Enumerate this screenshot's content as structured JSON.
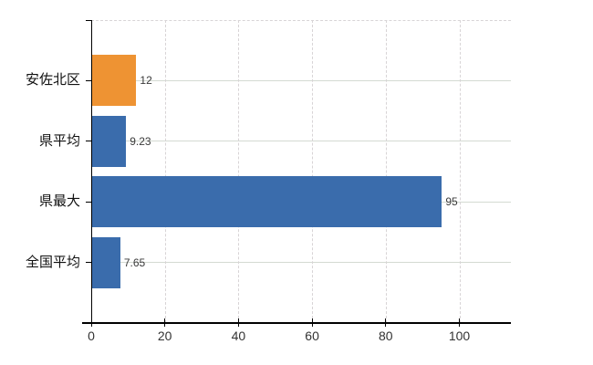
{
  "chart_data": {
    "type": "bar",
    "orientation": "horizontal",
    "title": "",
    "xlabel": "",
    "ylabel": "",
    "categories": [
      "安佐北区",
      "県平均",
      "県最大",
      "全国平均"
    ],
    "values": [
      12,
      9.23,
      95,
      7.65
    ],
    "value_labels": [
      "12",
      "9.23",
      "95",
      "7.65"
    ],
    "bar_colors": [
      "#EE9333",
      "#3A6CAC",
      "#3A6CAC",
      "#3A6CAC"
    ],
    "x_ticks": [
      0,
      20,
      40,
      60,
      80,
      100
    ],
    "x_tick_labels": [
      "0",
      "20",
      "40",
      "60",
      "80",
      "100"
    ],
    "xlim": [
      0,
      114
    ],
    "legend": "none",
    "grid": {
      "vertical": "dashed",
      "horizontal": "solid",
      "top_border": "dashed"
    },
    "colors": {
      "background": "#FFFFFF",
      "axis": "#000000",
      "gridline_vertical": "#D8D4D6",
      "gridline_horizontal": "#D4DAD2",
      "value_label": "#3A3A3A",
      "category_label": "#111111",
      "tick_label": "#333333"
    }
  }
}
